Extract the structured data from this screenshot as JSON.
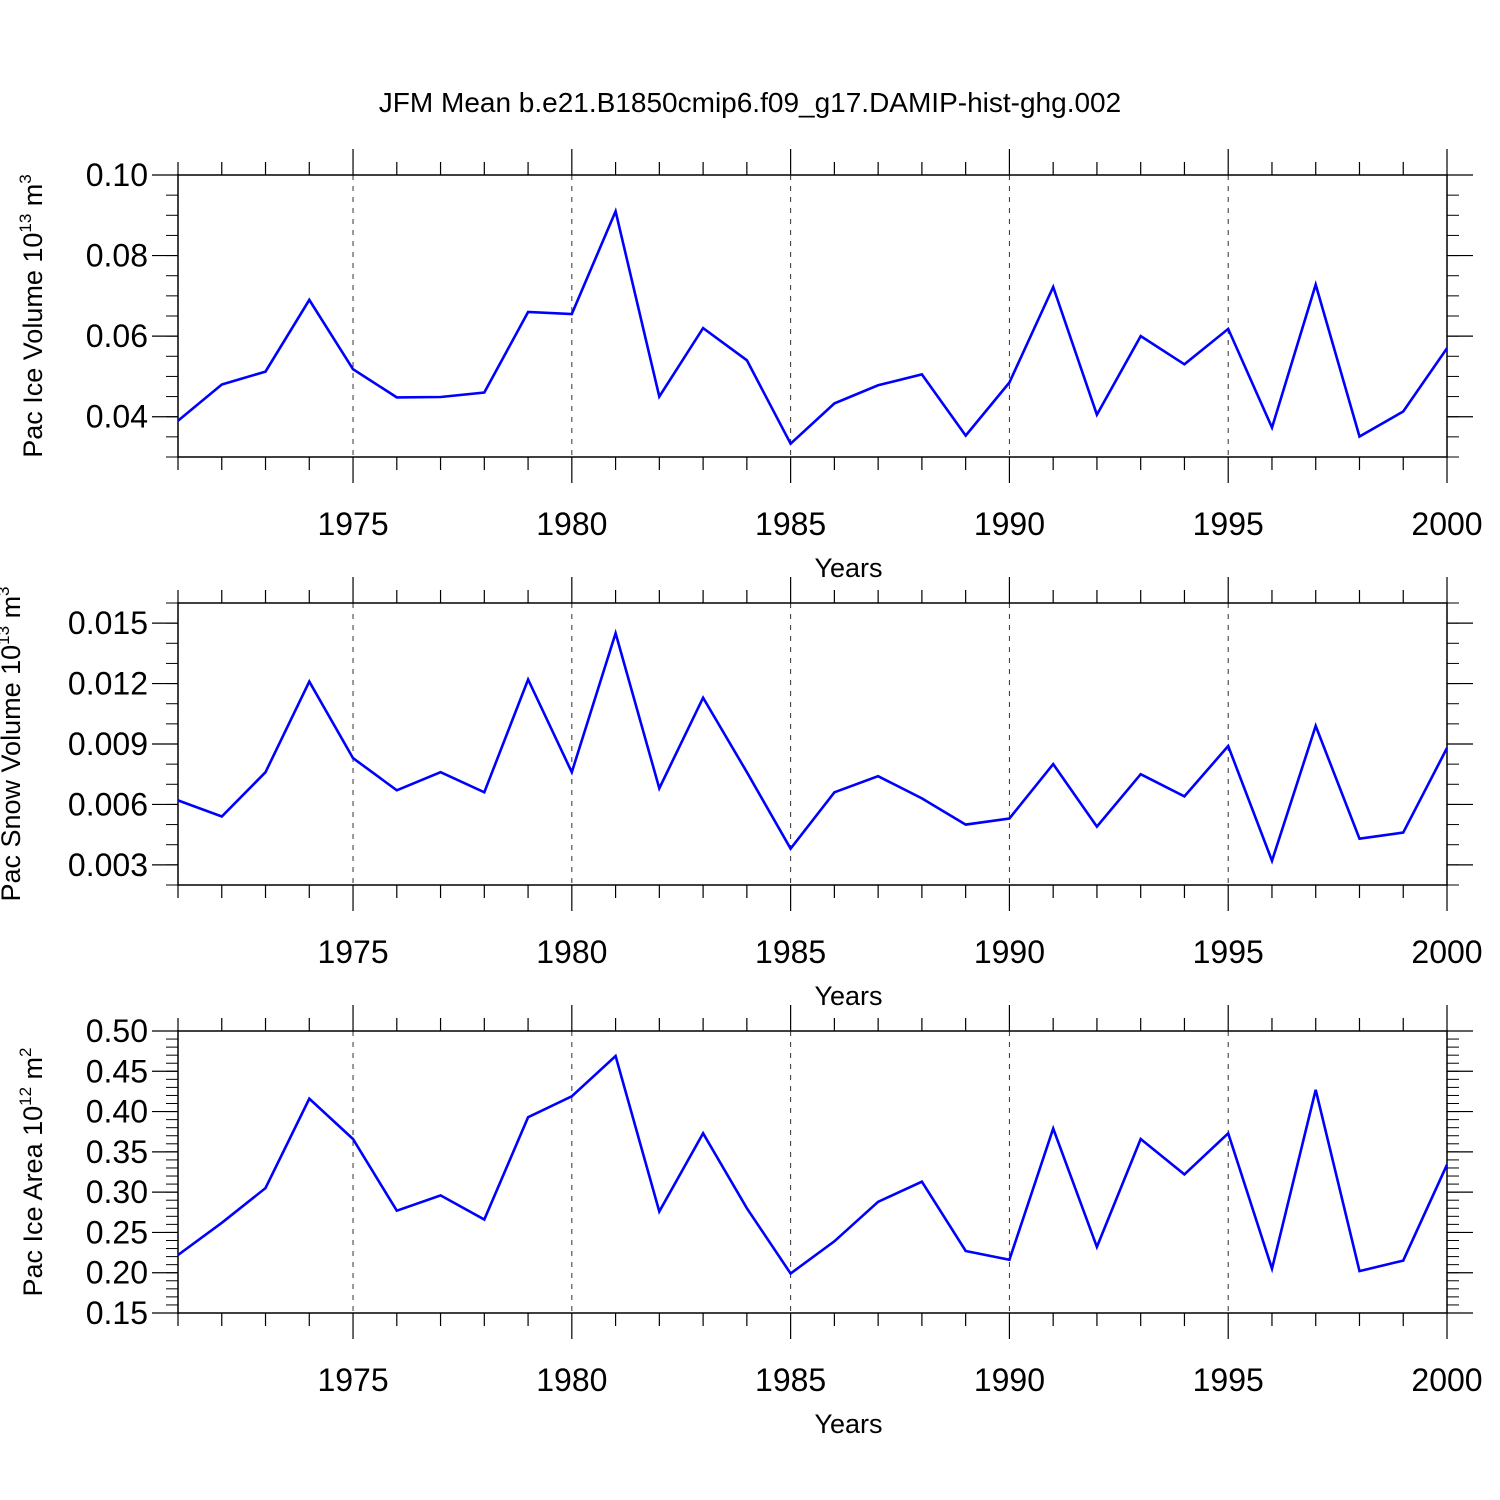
{
  "title": "JFM Mean b.e21.B1850cmip6.f09_g17.DAMIP-hist-ghg.002",
  "line_color": "#0000ff",
  "grid": "dashed vertical lines at major x ticks",
  "chart_data": [
    {
      "type": "line",
      "ylabel": "Pac Ice Volume 10",
      "ylabel_exp": "13",
      "ylabel_unit": " m",
      "ylabel_unit_exp": "3",
      "xlabel": "Years",
      "xlim": [
        1971,
        2000
      ],
      "ylim": [
        0.03,
        0.1
      ],
      "yticks": [
        "0.04",
        "0.06",
        "0.08",
        "0.10"
      ],
      "ytick_values": [
        0.04,
        0.06,
        0.08,
        0.1
      ],
      "yminor_step": 0.005,
      "xticks": [
        "1975",
        "1980",
        "1985",
        "1990",
        "1995",
        "2000"
      ],
      "xtick_values": [
        1975,
        1980,
        1985,
        1990,
        1995,
        2000
      ],
      "x": [
        1971,
        1972,
        1973,
        1974,
        1975,
        1976,
        1977,
        1978,
        1979,
        1980,
        1981,
        1982,
        1983,
        1984,
        1985,
        1986,
        1987,
        1988,
        1989,
        1990,
        1991,
        1992,
        1993,
        1994,
        1995,
        1996,
        1997,
        1998,
        1999,
        2000
      ],
      "values": [
        0.039,
        0.048,
        0.0512,
        0.069,
        0.0518,
        0.0448,
        0.0449,
        0.046,
        0.066,
        0.0655,
        0.091,
        0.045,
        0.062,
        0.054,
        0.0333,
        0.0433,
        0.0478,
        0.0505,
        0.0353,
        0.0485,
        0.0722,
        0.0405,
        0.06,
        0.053,
        0.0618,
        0.0373,
        0.0728,
        0.0351,
        0.0413,
        0.057
      ]
    },
    {
      "type": "line",
      "ylabel": "Pac Snow Volume 10",
      "ylabel_exp": "13",
      "ylabel_unit": " m",
      "ylabel_unit_exp": "3",
      "xlabel": "Years",
      "xlim": [
        1971,
        2000
      ],
      "ylim": [
        0.002,
        0.016
      ],
      "yticks": [
        "0.003",
        "0.006",
        "0.009",
        "0.012",
        "0.015"
      ],
      "ytick_values": [
        0.003,
        0.006,
        0.009,
        0.012,
        0.015
      ],
      "yminor_step": 0.001,
      "xticks": [
        "1975",
        "1980",
        "1985",
        "1990",
        "1995",
        "2000"
      ],
      "xtick_values": [
        1975,
        1980,
        1985,
        1990,
        1995,
        2000
      ],
      "x": [
        1971,
        1972,
        1973,
        1974,
        1975,
        1976,
        1977,
        1978,
        1979,
        1980,
        1981,
        1982,
        1983,
        1984,
        1985,
        1986,
        1987,
        1988,
        1989,
        1990,
        1991,
        1992,
        1993,
        1994,
        1995,
        1996,
        1997,
        1998,
        1999,
        2000
      ],
      "values": [
        0.0062,
        0.0054,
        0.0076,
        0.0121,
        0.0083,
        0.0067,
        0.0076,
        0.0066,
        0.0122,
        0.0076,
        0.0145,
        0.0068,
        0.0113,
        0.0076,
        0.0038,
        0.0066,
        0.0074,
        0.0063,
        0.005,
        0.0053,
        0.008,
        0.0049,
        0.0075,
        0.0064,
        0.0089,
        0.0032,
        0.0099,
        0.0043,
        0.0046,
        0.0088
      ]
    },
    {
      "type": "line",
      "ylabel": "Pac Ice Area 10",
      "ylabel_exp": "12",
      "ylabel_unit": " m",
      "ylabel_unit_exp": "2",
      "xlabel": "Years",
      "xlim": [
        1971,
        2000
      ],
      "ylim": [
        0.15,
        0.5
      ],
      "yticks": [
        "0.15",
        "0.20",
        "0.25",
        "0.30",
        "0.35",
        "0.40",
        "0.45",
        "0.50"
      ],
      "ytick_values": [
        0.15,
        0.2,
        0.25,
        0.3,
        0.35,
        0.4,
        0.45,
        0.5
      ],
      "yminor_step": 0.01,
      "xticks": [
        "1975",
        "1980",
        "1985",
        "1990",
        "1995",
        "2000"
      ],
      "xtick_values": [
        1975,
        1980,
        1985,
        1990,
        1995,
        2000
      ],
      "x": [
        1971,
        1972,
        1973,
        1974,
        1975,
        1976,
        1977,
        1978,
        1979,
        1980,
        1981,
        1982,
        1983,
        1984,
        1985,
        1986,
        1987,
        1988,
        1989,
        1990,
        1991,
        1992,
        1993,
        1994,
        1995,
        1996,
        1997,
        1998,
        1999,
        2000
      ],
      "values": [
        0.222,
        0.262,
        0.305,
        0.416,
        0.366,
        0.277,
        0.296,
        0.266,
        0.393,
        0.419,
        0.469,
        0.276,
        0.373,
        0.28,
        0.199,
        0.239,
        0.288,
        0.313,
        0.227,
        0.216,
        0.379,
        0.232,
        0.366,
        0.322,
        0.373,
        0.205,
        0.427,
        0.202,
        0.215,
        0.334
      ]
    }
  ]
}
